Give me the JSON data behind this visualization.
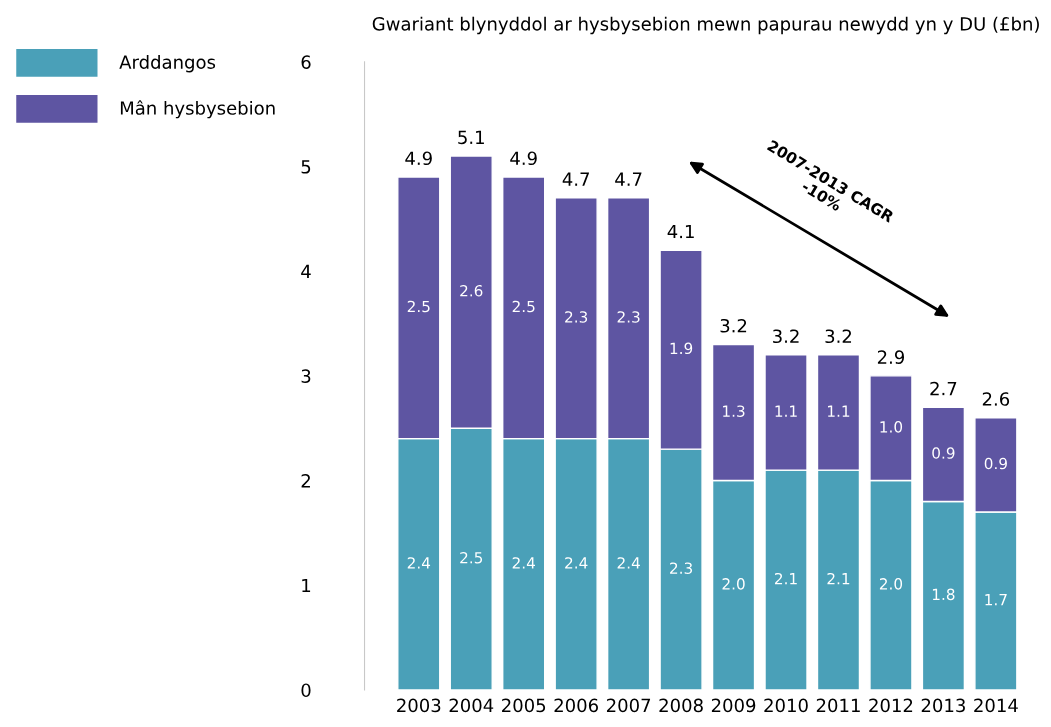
{
  "chart_data": {
    "type": "bar",
    "title": "Gwariant blynyddol ar hysbysebion mewn papurau newydd yn y DU (£bn)",
    "categories": [
      "2003",
      "2004",
      "2005",
      "2006",
      "2007",
      "2008",
      "2009",
      "2010",
      "2011",
      "2012",
      "2013",
      "2014"
    ],
    "stacked": true,
    "series": [
      {
        "name": "Arddangos",
        "color": "#4aa0b8",
        "values": [
          2.4,
          2.5,
          2.4,
          2.4,
          2.4,
          2.3,
          2.0,
          2.1,
          2.1,
          2.0,
          1.8,
          1.7
        ],
        "value_labels": [
          "2.4",
          "2.5",
          "2.4",
          "2.4",
          "2.4",
          "2.3",
          "2.0",
          "2.1",
          "2.1",
          "2.0",
          "1.8",
          "1.7"
        ]
      },
      {
        "name": "Mân hysbysebion",
        "color": "#5e55a2",
        "values": [
          2.5,
          2.6,
          2.5,
          2.3,
          2.3,
          1.9,
          1.3,
          1.1,
          1.1,
          1.0,
          0.9,
          0.9
        ],
        "value_labels": [
          "2.5",
          "2.6",
          "2.5",
          "2.3",
          "2.3",
          "1.9",
          "1.3",
          "1.1",
          "1.1",
          "1.0",
          "0.9",
          "0.9"
        ]
      }
    ],
    "totals": [
      "4.9",
      "5.1",
      "4.9",
      "4.7",
      "4.7",
      "4.1",
      "3.2",
      "3.2",
      "3.2",
      "2.9",
      "2.7",
      "2.6"
    ],
    "ylim": [
      0,
      6
    ],
    "yticks": [
      0,
      1,
      2,
      3,
      4,
      5,
      6
    ],
    "grid": false,
    "legend": "top left",
    "annotations": [
      "2007-2013 CAGR\n-10%"
    ]
  }
}
